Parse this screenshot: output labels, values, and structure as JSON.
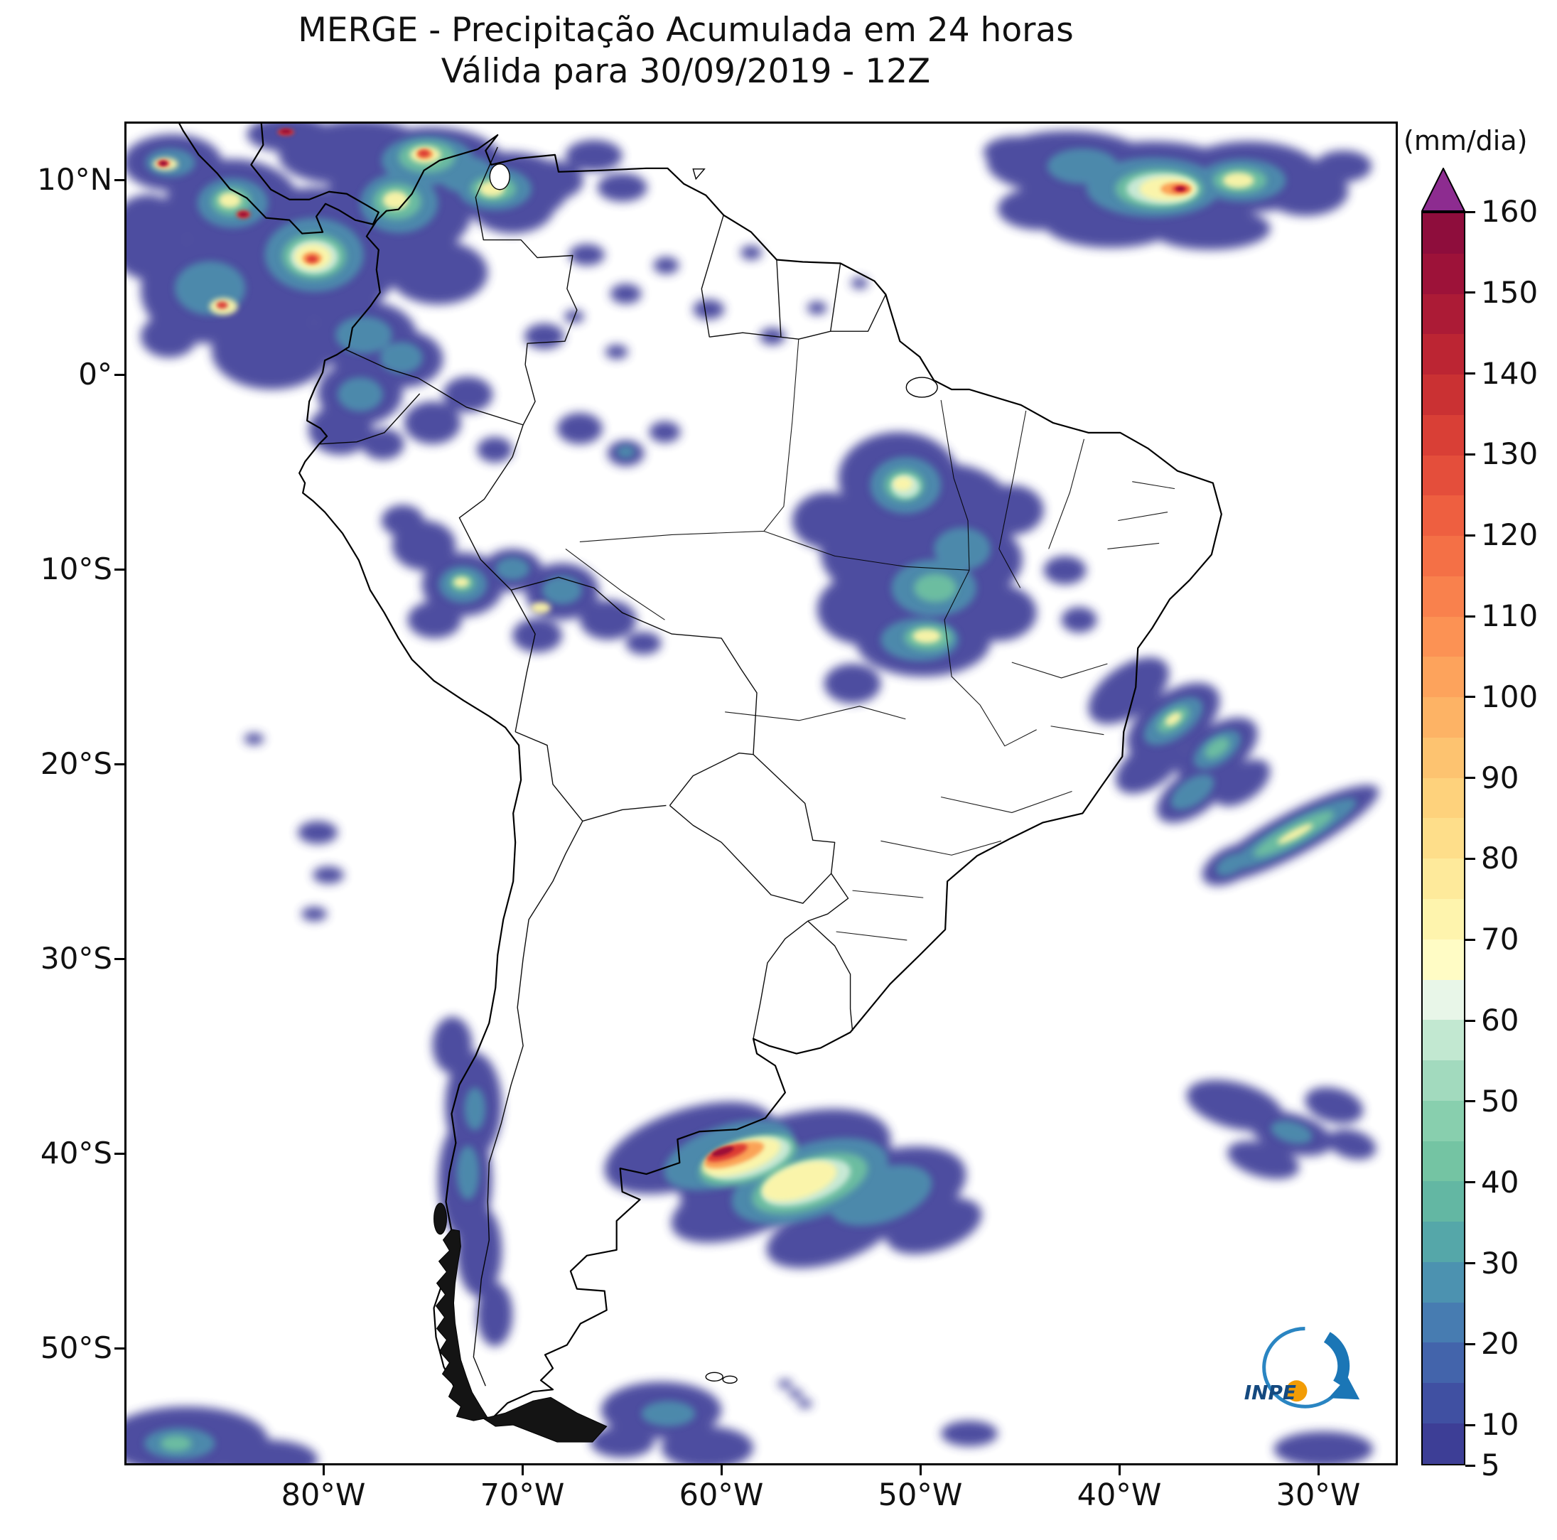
{
  "title": {
    "line1": "MERGE - Precipitação Acumulada em 24 horas",
    "line2": "Válida para 30/09/2019 - 12Z"
  },
  "axes": {
    "y_ticks": [
      "10°N",
      "0°",
      "10°S",
      "20°S",
      "30°S",
      "40°S",
      "50°S"
    ],
    "x_ticks": [
      "80°W",
      "70°W",
      "60°W",
      "50°W",
      "40°W",
      "30°W"
    ]
  },
  "colorbar": {
    "unit_label": "(mm/dia)",
    "over_color": "#8d2c90",
    "ticks": [
      160,
      150,
      140,
      130,
      120,
      110,
      100,
      90,
      80,
      70,
      60,
      50,
      40,
      30,
      20,
      10,
      5
    ],
    "segments": [
      {
        "from": 155,
        "to": 160,
        "color": "#8e0d3c"
      },
      {
        "from": 150,
        "to": 155,
        "color": "#9d1239"
      },
      {
        "from": 145,
        "to": 150,
        "color": "#ac1b36"
      },
      {
        "from": 140,
        "to": 145,
        "color": "#bc2533"
      },
      {
        "from": 135,
        "to": 140,
        "color": "#ca3133"
      },
      {
        "from": 130,
        "to": 135,
        "color": "#d93f36"
      },
      {
        "from": 125,
        "to": 130,
        "color": "#e44e3b"
      },
      {
        "from": 120,
        "to": 125,
        "color": "#ee5f40"
      },
      {
        "from": 115,
        "to": 120,
        "color": "#f47046"
      },
      {
        "from": 110,
        "to": 115,
        "color": "#f9814d"
      },
      {
        "from": 105,
        "to": 110,
        "color": "#fc9254"
      },
      {
        "from": 100,
        "to": 105,
        "color": "#fda35c"
      },
      {
        "from": 95,
        "to": 100,
        "color": "#fdb365"
      },
      {
        "from": 90,
        "to": 95,
        "color": "#fdc370"
      },
      {
        "from": 85,
        "to": 90,
        "color": "#fed27c"
      },
      {
        "from": 80,
        "to": 85,
        "color": "#fede8a"
      },
      {
        "from": 75,
        "to": 80,
        "color": "#feea9b"
      },
      {
        "from": 70,
        "to": 75,
        "color": "#fef4ad"
      },
      {
        "from": 65,
        "to": 70,
        "color": "#fffcc5"
      },
      {
        "from": 60,
        "to": 65,
        "color": "#e8f6e8"
      },
      {
        "from": 55,
        "to": 60,
        "color": "#c2e8d1"
      },
      {
        "from": 50,
        "to": 55,
        "color": "#a2dabe"
      },
      {
        "from": 45,
        "to": 50,
        "color": "#88cfae"
      },
      {
        "from": 40,
        "to": 45,
        "color": "#74c4a3"
      },
      {
        "from": 35,
        "to": 40,
        "color": "#63b7a3"
      },
      {
        "from": 30,
        "to": 35,
        "color": "#55a7a9"
      },
      {
        "from": 25,
        "to": 30,
        "color": "#4c92b0"
      },
      {
        "from": 20,
        "to": 25,
        "color": "#477cb1"
      },
      {
        "from": 15,
        "to": 20,
        "color": "#4364ab"
      },
      {
        "from": 10,
        "to": 15,
        "color": "#4050a2"
      },
      {
        "from": 5,
        "to": 10,
        "color": "#3d3e96"
      }
    ]
  },
  "logo": {
    "text": "INPE"
  },
  "chart_data": {
    "type": "heatmap",
    "product": "MERGE",
    "title": "MERGE - Precipitação Acumulada em 24 horas",
    "valid": "30/09/2019 - 12Z",
    "units": "mm/dia",
    "lat_axis_ticks": [
      "10°N",
      "0°",
      "10°S",
      "20°S",
      "30°S",
      "40°S",
      "50°S"
    ],
    "lon_axis_ticks": [
      "80°W",
      "70°W",
      "60°W",
      "50°W",
      "40°W",
      "30°W"
    ],
    "color_scale_levels": [
      5,
      10,
      20,
      30,
      40,
      50,
      60,
      70,
      80,
      90,
      100,
      110,
      120,
      130,
      140,
      150,
      160
    ],
    "scale_extends_above_max": true,
    "legend_position": "right vertical colorbar",
    "notable_precipitation_areas": [
      {
        "area": "northwest South America (Panama / Colombia / west Venezuela)",
        "peak_mm_dia": 160
      },
      {
        "area": "northern Venezuela and Guyana coast",
        "peak_mm_dia": 150
      },
      {
        "area": "tropical Atlantic ITCZ band (northeast corner)",
        "peak_mm_dia": 160
      },
      {
        "area": "central Brazil (Tocantins / Goiás / Mato Grosso)",
        "peak_mm_dia": 70
      },
      {
        "area": "Peru - Bolivia border region",
        "peak_mm_dia": 70
      },
      {
        "area": "ocean off southeast Brazil coast",
        "peak_mm_dia": 40
      },
      {
        "area": "south Atlantic diagonal streak near 24°S",
        "peak_mm_dia": 70
      },
      {
        "area": "northeast Argentina / Uruguay / Buenos Aires system",
        "peak_mm_dia": 150
      },
      {
        "area": "southern Chile coast",
        "peak_mm_dia": 30
      }
    ]
  }
}
